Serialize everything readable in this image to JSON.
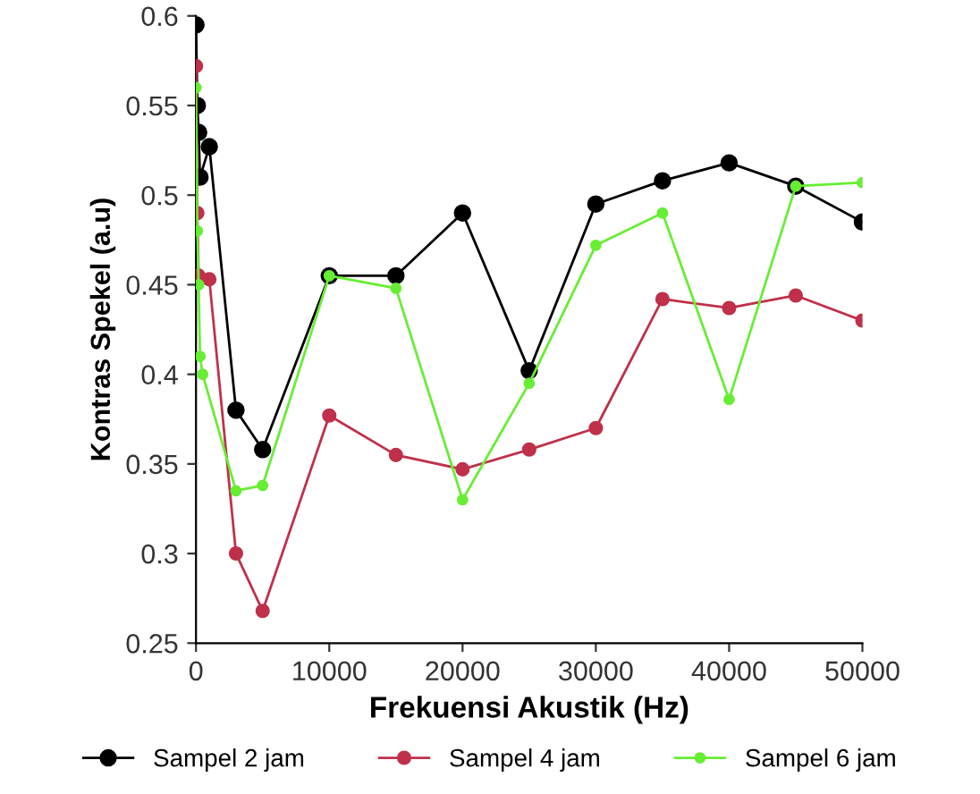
{
  "chart_data": {
    "type": "line",
    "xlabel": "Frekuensi Akustik (Hz)",
    "ylabel": "Kontras Spekel (a.u)",
    "xlim": [
      0,
      50000
    ],
    "xticks": [
      0,
      10000,
      20000,
      30000,
      40000,
      50000
    ],
    "ylim": [
      0.25,
      0.6
    ],
    "yticks": [
      {
        "value": 0.25,
        "label": "0.25"
      },
      {
        "value": 0.3,
        "label": "0.3"
      },
      {
        "value": 0.35,
        "label": "0.35"
      },
      {
        "value": 0.4,
        "label": "0.4"
      },
      {
        "value": 0.45,
        "label": "0.45"
      },
      {
        "value": 0.5,
        "label": "0.5"
      },
      {
        "value": 0.55,
        "label": "0.55"
      },
      {
        "value": 0.6,
        "label": "0.6"
      }
    ],
    "grid": false,
    "legend": "bottom",
    "marker": "circle",
    "line_style": "solid",
    "series": [
      {
        "name": "Sampel 2 jam",
        "color": "#000000",
        "x": [
          0,
          100,
          200,
          300,
          1000,
          3000,
          5000,
          10000,
          15000,
          20000,
          25000,
          30000,
          35000,
          40000,
          45000,
          50000
        ],
        "values": [
          0.595,
          0.55,
          0.535,
          0.51,
          0.527,
          0.38,
          0.358,
          0.455,
          0.455,
          0.49,
          0.402,
          0.495,
          0.508,
          0.518,
          0.505,
          0.485
        ]
      },
      {
        "name": "Sampel 4 jam",
        "color": "#c0304a",
        "x": [
          0,
          100,
          200,
          1000,
          3000,
          5000,
          10000,
          15000,
          20000,
          25000,
          30000,
          35000,
          40000,
          45000,
          50000
        ],
        "values": [
          0.572,
          0.49,
          0.455,
          0.453,
          0.3,
          0.268,
          0.377,
          0.355,
          0.347,
          0.358,
          0.37,
          0.442,
          0.437,
          0.444,
          0.43
        ]
      },
      {
        "name": "Sampel 6 jam",
        "color": "#66ee33",
        "x": [
          0,
          100,
          200,
          300,
          500,
          3000,
          5000,
          10000,
          15000,
          20000,
          25000,
          30000,
          35000,
          40000,
          45000,
          50000
        ],
        "values": [
          0.56,
          0.48,
          0.45,
          0.41,
          0.4,
          0.335,
          0.338,
          0.455,
          0.448,
          0.33,
          0.395,
          0.472,
          0.49,
          0.386,
          0.505,
          0.507
        ]
      }
    ]
  }
}
